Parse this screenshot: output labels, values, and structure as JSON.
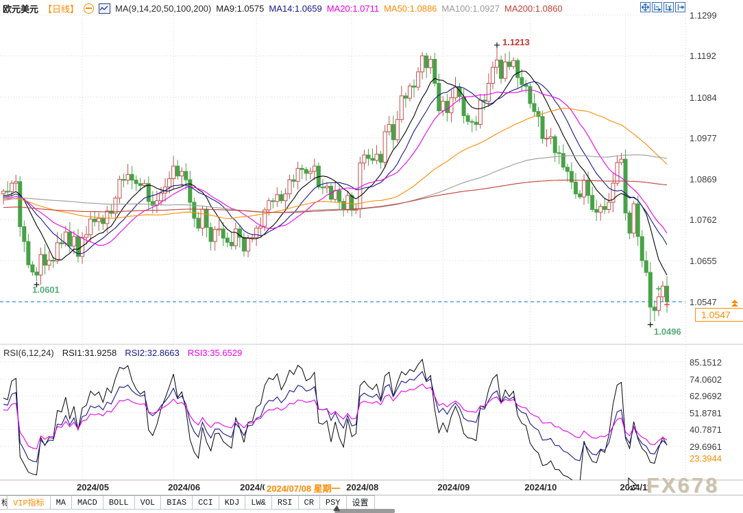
{
  "header": {
    "symbol": "欧元美元",
    "period_tag": "【日线】",
    "ma_group_label": "MA(9,14,20,50,100,200)",
    "ma_values": [
      {
        "label": "MA9:1.0575",
        "color": "#1a1a1a"
      },
      {
        "label": "MA14:1.0659",
        "color": "#16168c"
      },
      {
        "label": "MA20:1.0711",
        "color": "#e800e8"
      },
      {
        "label": "MA50:1.0886",
        "color": "#ff8a00"
      },
      {
        "label": "MA100:1.0927",
        "color": "#9a9a9a"
      },
      {
        "label": "MA200:1.0860",
        "color": "#c04035"
      }
    ],
    "toolbar_icons": [
      "move-tool",
      "zoom-x-scale",
      "zoom-y-scale",
      "pan-to-latest"
    ]
  },
  "price_axis": {
    "ticks": [
      "1.1299",
      "1.1192",
      "1.1084",
      "1.0977",
      "1.0869",
      "1.0762",
      "1.0655",
      "1.0547"
    ],
    "last_price_tag": "1.0547",
    "accent_color": "#ff8a00"
  },
  "annotations": {
    "high_label": "1.1213",
    "low_april_label": "1.0601",
    "low_november_label": "1.0496"
  },
  "rsi_panel": {
    "header": "RSI(6,12,24)",
    "values": [
      {
        "label": "RSI1:31.9258",
        "color": "#1a1a1a"
      },
      {
        "label": "RSI2:32.8663",
        "color": "#16168c"
      },
      {
        "label": "RSI3:35.6529",
        "color": "#e800e8"
      }
    ],
    "axis_ticks": [
      "85.1512",
      "74.0602",
      "62.9692",
      "51.8781",
      "40.7871",
      "29.6961"
    ],
    "low_value_tick": "23.3944"
  },
  "x_axis": {
    "labels": [
      "2024/05",
      "2024/06",
      "2024/07",
      "2024/08",
      "2024/09",
      "2024/10",
      "2024/11"
    ],
    "crosshair_date": "2024/07/08 星期一"
  },
  "toolbar": {
    "partial_button": "标",
    "buttons": [
      {
        "label": "VIP指标",
        "color": "#ff8a00"
      },
      {
        "label": "MA"
      },
      {
        "label": "MACD"
      },
      {
        "label": "BOLL"
      },
      {
        "label": "VOL"
      },
      {
        "label": "BIAS"
      },
      {
        "label": "CCI"
      },
      {
        "label": "KDJ"
      },
      {
        "label": "LW&"
      },
      {
        "label": "RSI"
      },
      {
        "label": "CR"
      },
      {
        "label": "PSY"
      },
      {
        "label": "设置"
      }
    ]
  },
  "watermark": "FX678",
  "chart_data": {
    "type": "candlestick",
    "title": "欧元美元 日线 (EUR/USD Daily)",
    "timeframe": "daily",
    "price_ticks": [
      1.1299,
      1.1192,
      1.1084,
      1.0977,
      1.0869,
      1.0762,
      1.0655,
      1.0547
    ],
    "last_close": 1.0547,
    "marked_high": 1.1213,
    "marked_low_april": 1.0601,
    "marked_low_november": 1.0496,
    "current_price_line_color": "#2f8fe8",
    "up_candle_color": "#c0504d",
    "down_candle_color": "#47a247",
    "first_open": 1.083,
    "closes": [
      1.0837,
      1.0836,
      1.0858,
      1.0862,
      1.0744,
      1.0705,
      1.0644,
      1.0625,
      1.0617,
      1.0671,
      1.0643,
      1.0656,
      1.0654,
      1.0702,
      1.0699,
      1.073,
      1.0693,
      1.0718,
      1.0666,
      1.0716,
      1.0723,
      1.0764,
      1.0757,
      1.0766,
      1.0752,
      1.0785,
      1.0779,
      1.0819,
      1.0868,
      1.0866,
      1.0881,
      1.0866,
      1.0857,
      1.0852,
      1.0857,
      1.081,
      1.08,
      1.0812,
      1.0832,
      1.0848,
      1.087,
      1.0903,
      1.0877,
      1.0889,
      1.0867,
      1.0808,
      1.0766,
      1.074,
      1.079,
      1.0742,
      1.0705,
      1.0737,
      1.0738,
      1.0714,
      1.0703,
      1.0694,
      1.0738,
      1.0716,
      1.068,
      1.0713,
      1.0715,
      1.074,
      1.0745,
      1.0788,
      1.0812,
      1.081,
      1.0828,
      1.0812,
      1.083,
      1.0867,
      1.0863,
      1.0897,
      1.0894,
      1.0884,
      1.0889,
      1.0903,
      1.0848,
      1.0846,
      1.085,
      1.0816,
      1.0839,
      1.081,
      1.0788,
      1.0826,
      1.0787,
      1.0791,
      1.0911,
      1.0932,
      1.0923,
      1.0918,
      1.0934,
      1.0913,
      1.0993,
      1.1012,
      1.0972,
      1.1025,
      1.1087,
      1.1081,
      1.1113,
      1.111,
      1.115,
      1.1192,
      1.1161,
      1.1183,
      1.112,
      1.1048,
      1.1073,
      1.1043,
      1.1082,
      1.111,
      1.1085,
      1.1035,
      1.102,
      1.1018,
      1.1012,
      1.1076,
      1.1073,
      1.112,
      1.1162,
      1.1181,
      1.1133,
      1.1176,
      1.1164,
      1.118,
      1.1135,
      1.1117,
      1.1112,
      1.1067,
      1.1046,
      1.1033,
      1.0975,
      1.0976,
      1.098,
      1.0938,
      1.0936,
      1.09,
      1.0889,
      1.0861,
      1.083,
      1.0822,
      1.0866,
      1.0826,
      1.0789,
      1.0782,
      1.0797,
      1.0789,
      1.0808,
      1.0858,
      1.0912,
      1.0921,
      1.078,
      1.0727,
      1.0804,
      1.0718,
      1.0655,
      1.0624,
      1.0533,
      1.0524,
      1.056,
      1.0588,
      1.0547
    ],
    "wick_overrides": {
      "8": {
        "low": 1.0601
      },
      "101": {
        "high": 1.1202
      },
      "119": {
        "high": 1.1213
      },
      "156": {
        "low": 1.0496
      },
      "160": {
        "low": 1.0518
      }
    },
    "month_start_indices": [
      19,
      41,
      61,
      84,
      106,
      127,
      150
    ],
    "month_labels": [
      "2024/05",
      "2024/06",
      "2024/07",
      "2024/08",
      "2024/09",
      "2024/10",
      "2024/11"
    ],
    "selected_index_date": "2024/07/08 星期一",
    "moving_averages": {
      "windows": [
        9,
        14,
        20,
        50,
        100,
        200
      ],
      "colors": [
        "#000000",
        "#16168c",
        "#e800e8",
        "#ff8a00",
        "#9a9a9a",
        "#c04035"
      ],
      "last_values": [
        1.0575,
        1.0659,
        1.0711,
        1.0886,
        1.0927,
        1.086
      ]
    },
    "sub_chart": {
      "type": "line",
      "indicator": "RSI",
      "periods": [
        6,
        12,
        24
      ],
      "colors": [
        "#000000",
        "#16168c",
        "#e800e8"
      ],
      "last_values": [
        31.9258,
        32.8663,
        35.6529
      ],
      "axis_ticks": [
        85.1512,
        74.0602,
        62.9692,
        51.8781,
        40.7871,
        29.6961,
        23.3944
      ]
    }
  }
}
